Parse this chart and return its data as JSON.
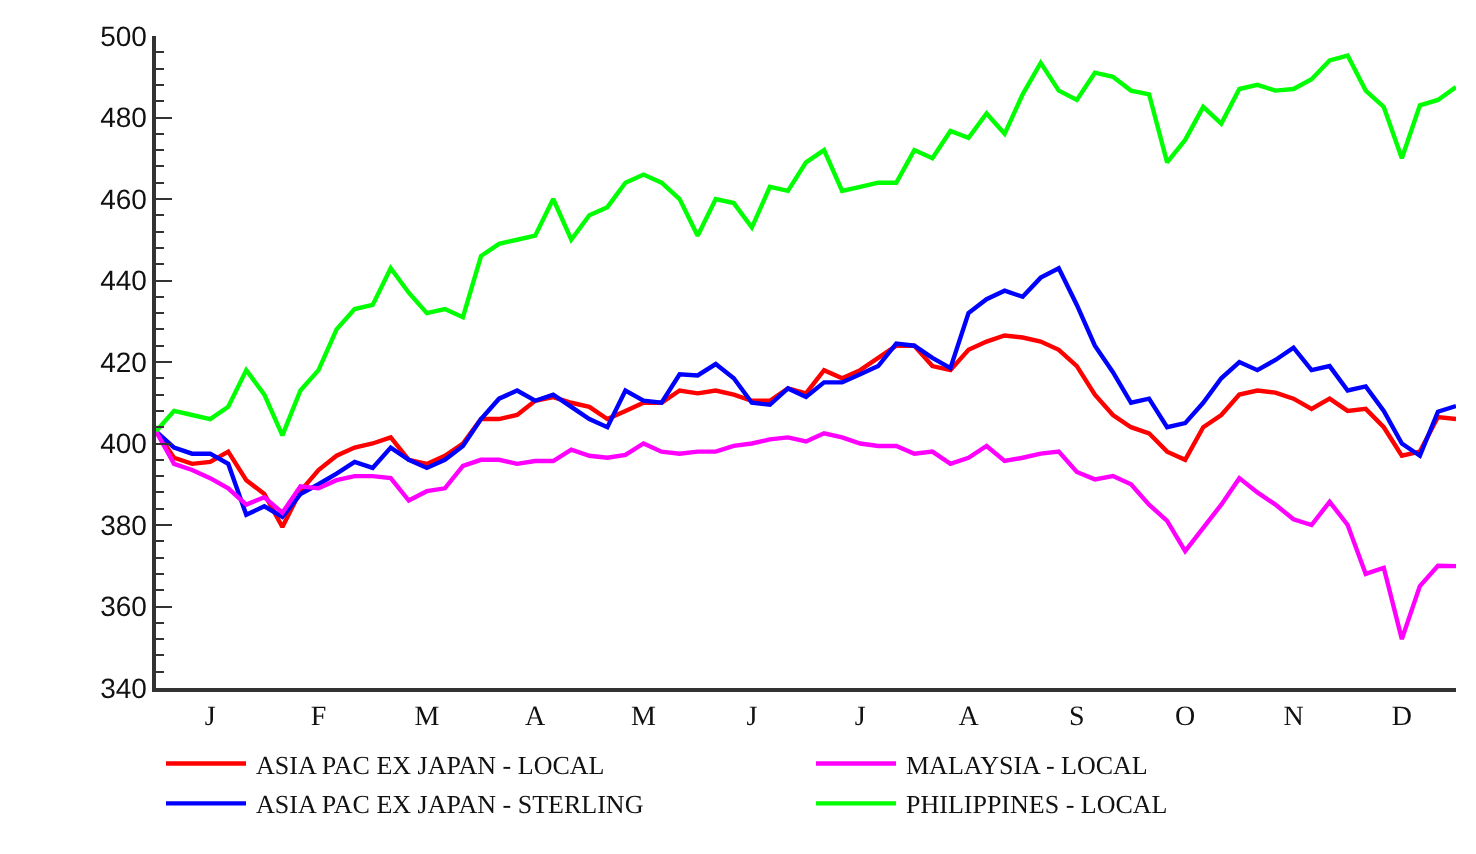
{
  "chart_data": {
    "type": "line",
    "categories": [
      null,
      null,
      null,
      "J",
      null,
      null,
      null,
      null,
      null,
      "F",
      null,
      null,
      null,
      null,
      null,
      "M",
      null,
      null,
      null,
      null,
      null,
      "A",
      null,
      null,
      null,
      null,
      null,
      "M",
      null,
      null,
      null,
      null,
      null,
      "J",
      null,
      null,
      null,
      null,
      null,
      "J",
      null,
      null,
      null,
      null,
      null,
      "A",
      null,
      null,
      null,
      null,
      null,
      "S",
      null,
      null,
      null,
      null,
      null,
      "O",
      null,
      null,
      null,
      null,
      null,
      "N",
      null,
      null,
      null,
      null,
      null,
      "D",
      null,
      null,
      null
    ],
    "ylim": [
      340,
      500
    ],
    "yticks": [
      340,
      360,
      380,
      400,
      420,
      440,
      460,
      480,
      500,
      {
        "value": 344,
        "label": null
      },
      {
        "value": 348,
        "label": null
      },
      {
        "value": 352,
        "label": null
      },
      {
        "value": 356,
        "label": null
      },
      {
        "value": 364,
        "label": null
      },
      {
        "value": 368,
        "label": null
      },
      {
        "value": 372,
        "label": null
      },
      {
        "value": 376,
        "label": null
      },
      {
        "value": 384,
        "label": null
      },
      {
        "value": 388,
        "label": null
      },
      {
        "value": 392,
        "label": null
      },
      {
        "value": 396,
        "label": null
      },
      {
        "value": 404,
        "label": null
      },
      {
        "value": 408,
        "label": null
      },
      {
        "value": 412,
        "label": null
      },
      {
        "value": 416,
        "label": null
      },
      {
        "value": 424,
        "label": null
      },
      {
        "value": 428,
        "label": null
      },
      {
        "value": 432,
        "label": null
      },
      {
        "value": 436,
        "label": null
      },
      {
        "value": 444,
        "label": null
      },
      {
        "value": 448,
        "label": null
      },
      {
        "value": 452,
        "label": null
      },
      {
        "value": 456,
        "label": null
      },
      {
        "value": 464,
        "label": null
      },
      {
        "value": 468,
        "label": null
      },
      {
        "value": 472,
        "label": null
      },
      {
        "value": 476,
        "label": null
      },
      {
        "value": 484,
        "label": null
      },
      {
        "value": 488,
        "label": null
      },
      {
        "value": 492,
        "label": null
      },
      {
        "value": 496,
        "label": null
      }
    ],
    "legend": "bottom",
    "marker": "none",
    "line_style": "solid",
    "series": [
      {
        "name": "ASIA PAC EX JAPAN - LOCAL",
        "color": "#ff0000",
        "values": [
          403,
          396.5,
          395,
          395.5,
          398,
          391,
          387.6,
          379.5,
          388.3,
          393.5,
          397,
          399,
          400,
          401.5,
          396,
          395,
          397,
          400,
          406,
          406,
          407,
          410.5,
          411.4,
          410,
          409,
          406,
          408,
          410,
          410,
          413,
          412.3,
          413,
          412,
          410.5,
          410.5,
          413.5,
          412.3,
          418,
          416,
          418,
          421,
          424,
          424,
          419,
          418,
          423,
          425,
          426.5,
          426,
          425,
          423,
          419,
          412,
          407,
          404,
          402.5,
          398,
          396,
          404,
          407,
          412,
          413,
          412.5,
          411,
          408.5,
          411,
          408,
          408.5,
          404,
          397,
          398,
          406.5,
          406
        ]
      },
      {
        "name": "ASIA PAC EX JAPAN - STERLING",
        "color": "#0000ff",
        "values": [
          403,
          399,
          397.5,
          397.5,
          395,
          382.5,
          384.6,
          382,
          387.6,
          390,
          392.6,
          395.5,
          394,
          399,
          396,
          394,
          396,
          399.4,
          406,
          411,
          413,
          410.5,
          412,
          409,
          406,
          404,
          413,
          410.5,
          410,
          417,
          416.7,
          419.5,
          416,
          410,
          409.5,
          413.5,
          411.4,
          415,
          415,
          417,
          419,
          424.5,
          424,
          421,
          418.5,
          432,
          435.4,
          437.5,
          436,
          440.7,
          443,
          434,
          424,
          417.5,
          410,
          411,
          404,
          405,
          410,
          416,
          420,
          418,
          420.5,
          423.5,
          418,
          419,
          413,
          414,
          408,
          400,
          397,
          407.8,
          409.2
        ]
      },
      {
        "name": "MALAYSIA - LOCAL",
        "color": "#ff00ff",
        "values": [
          403,
          395,
          393.5,
          391.5,
          389,
          385,
          386.8,
          383,
          389.5,
          389,
          391,
          392,
          392,
          391.5,
          386,
          388.3,
          389,
          394.5,
          396,
          396,
          395,
          395.7,
          395.7,
          398.5,
          397,
          396.5,
          397.2,
          400,
          398,
          397.5,
          398,
          398,
          399.4,
          400,
          401,
          401.5,
          400.5,
          402.5,
          401.5,
          400,
          399.4,
          399.4,
          397.5,
          398,
          395,
          396.5,
          399.4,
          395.7,
          396.5,
          397.5,
          398,
          393,
          391.2,
          392,
          390,
          385,
          381,
          373.6,
          379.3,
          385,
          391.5,
          388,
          385,
          381.4,
          380,
          385.7,
          380,
          368,
          369.5,
          352,
          365,
          370,
          369.9
        ]
      },
      {
        "name": "PHILIPPINES - LOCAL",
        "color": "#00ff00",
        "values": [
          403,
          408,
          407,
          406,
          409,
          418,
          412,
          402,
          413,
          418,
          428,
          433,
          434,
          443,
          437,
          432,
          433,
          431,
          446,
          449,
          450,
          451,
          460,
          450,
          456,
          458,
          464,
          466,
          464,
          460,
          451,
          460,
          459,
          453,
          463,
          462,
          469,
          472,
          462,
          463,
          464,
          464,
          472,
          470,
          476.7,
          475,
          481,
          476,
          485.7,
          493.4,
          486.6,
          484.3,
          491,
          490,
          486.6,
          485.7,
          469,
          474.5,
          482.6,
          478.5,
          487,
          488,
          486.6,
          487,
          489.4,
          494,
          495.2,
          486.6,
          482.6,
          470,
          483,
          484.3,
          487.5
        ]
      }
    ]
  }
}
